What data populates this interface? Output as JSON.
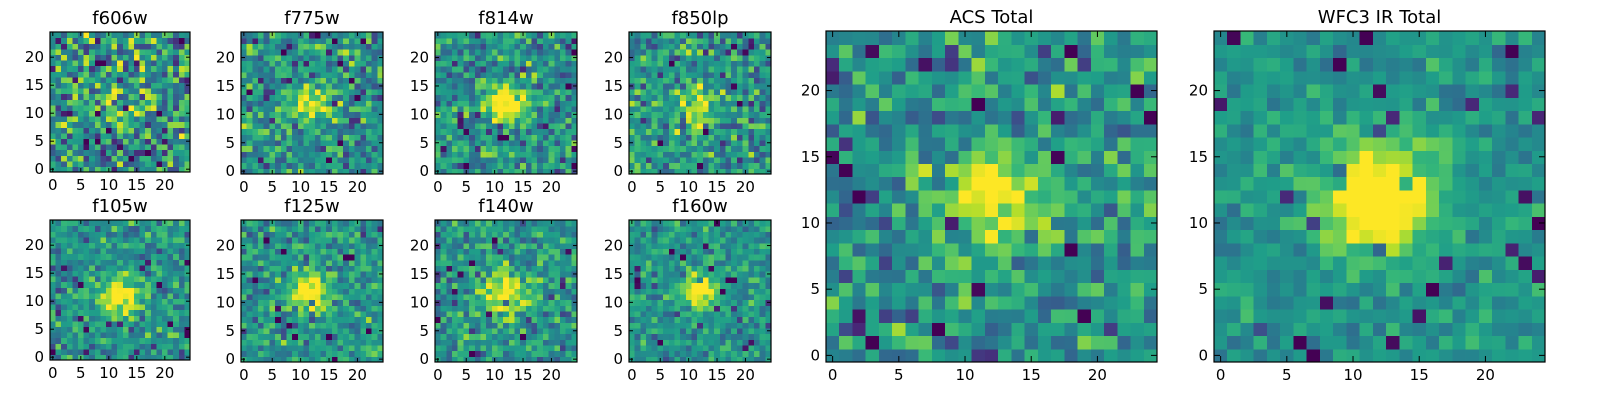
{
  "chart_data": [
    {
      "type": "heatmap",
      "title": "f606w",
      "grid_size": 25,
      "xlim": [
        0,
        24
      ],
      "ylim": [
        0,
        24
      ],
      "xticks": [
        "0",
        "5",
        "10",
        "15",
        "20"
      ],
      "yticks": [
        "0",
        "5",
        "10",
        "15",
        "20"
      ],
      "seed": 11,
      "noise": 0.58,
      "signal": {
        "peak": 0.22,
        "sigma": 2.2,
        "cx": 12,
        "cy": 12
      }
    },
    {
      "type": "heatmap",
      "title": "f775w",
      "grid_size": 25,
      "xlim": [
        0,
        24
      ],
      "ylim": [
        0,
        24
      ],
      "xticks": [
        "0",
        "5",
        "10",
        "15",
        "20"
      ],
      "yticks": [
        "0",
        "5",
        "10",
        "15",
        "20"
      ],
      "seed": 23,
      "noise": 0.42,
      "signal": {
        "peak": 0.48,
        "sigma": 2.4,
        "cx": 12,
        "cy": 12
      }
    },
    {
      "type": "heatmap",
      "title": "f814w",
      "grid_size": 25,
      "xlim": [
        0,
        24
      ],
      "ylim": [
        0,
        24
      ],
      "xticks": [
        "0",
        "5",
        "10",
        "15",
        "20"
      ],
      "yticks": [
        "0",
        "5",
        "10",
        "15",
        "20"
      ],
      "seed": 37,
      "noise": 0.42,
      "signal": {
        "peak": 0.6,
        "sigma": 2.3,
        "cx": 12,
        "cy": 12
      }
    },
    {
      "type": "heatmap",
      "title": "f850lp",
      "grid_size": 25,
      "xlim": [
        0,
        24
      ],
      "ylim": [
        0,
        24
      ],
      "xticks": [
        "0",
        "5",
        "10",
        "15",
        "20"
      ],
      "yticks": [
        "0",
        "5",
        "10",
        "15",
        "20"
      ],
      "seed": 41,
      "noise": 0.46,
      "signal": {
        "peak": 0.42,
        "sigma": 2.4,
        "cx": 12,
        "cy": 12
      }
    },
    {
      "type": "heatmap",
      "title": "f105w",
      "grid_size": 25,
      "xlim": [
        0,
        24
      ],
      "ylim": [
        0,
        24
      ],
      "xticks": [
        "0",
        "5",
        "10",
        "15",
        "20"
      ],
      "yticks": [
        "0",
        "5",
        "10",
        "15",
        "20"
      ],
      "seed": 53,
      "noise": 0.34,
      "signal": {
        "peak": 0.62,
        "sigma": 2.2,
        "cx": 12,
        "cy": 11
      }
    },
    {
      "type": "heatmap",
      "title": "f125w",
      "grid_size": 25,
      "xlim": [
        0,
        24
      ],
      "ylim": [
        0,
        24
      ],
      "xticks": [
        "0",
        "5",
        "10",
        "15",
        "20"
      ],
      "yticks": [
        "0",
        "5",
        "10",
        "15",
        "20"
      ],
      "seed": 67,
      "noise": 0.36,
      "signal": {
        "peak": 0.62,
        "sigma": 2.2,
        "cx": 12,
        "cy": 12
      }
    },
    {
      "type": "heatmap",
      "title": "f140w",
      "grid_size": 25,
      "xlim": [
        0,
        24
      ],
      "ylim": [
        0,
        24
      ],
      "xticks": [
        "0",
        "5",
        "10",
        "15",
        "20"
      ],
      "yticks": [
        "0",
        "5",
        "10",
        "15",
        "20"
      ],
      "seed": 79,
      "noise": 0.38,
      "signal": {
        "peak": 0.55,
        "sigma": 2.6,
        "cx": 12,
        "cy": 12
      }
    },
    {
      "type": "heatmap",
      "title": "f160w",
      "grid_size": 25,
      "xlim": [
        0,
        24
      ],
      "ylim": [
        0,
        24
      ],
      "xticks": [
        "0",
        "5",
        "10",
        "15",
        "20"
      ],
      "yticks": [
        "0",
        "5",
        "10",
        "15",
        "20"
      ],
      "seed": 97,
      "noise": 0.3,
      "signal": {
        "peak": 0.7,
        "sigma": 2.1,
        "cx": 12,
        "cy": 12
      }
    },
    {
      "type": "heatmap",
      "title": "ACS Total",
      "grid_size": 25,
      "xlim": [
        0,
        24
      ],
      "ylim": [
        0,
        24
      ],
      "xticks": [
        "0",
        "5",
        "10",
        "15",
        "20"
      ],
      "yticks": [
        "0",
        "5",
        "10",
        "15",
        "20"
      ],
      "seed": 131,
      "noise": 0.4,
      "signal": {
        "peak": 0.6,
        "sigma": 2.5,
        "cx": 12,
        "cy": 12
      }
    },
    {
      "type": "heatmap",
      "title": "WFC3 IR Total",
      "grid_size": 25,
      "xlim": [
        0,
        24
      ],
      "ylim": [
        0,
        24
      ],
      "xticks": [
        "0",
        "5",
        "10",
        "15",
        "20"
      ],
      "yticks": [
        "0",
        "5",
        "10",
        "15",
        "20"
      ],
      "seed": 151,
      "noise": 0.22,
      "signal": {
        "peak": 0.78,
        "sigma": 2.8,
        "cx": 12,
        "cy": 12
      }
    }
  ],
  "colormap": "viridis"
}
